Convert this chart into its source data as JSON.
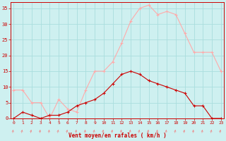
{
  "hours": [
    0,
    1,
    2,
    3,
    4,
    5,
    6,
    7,
    8,
    9,
    10,
    11,
    12,
    13,
    14,
    15,
    16,
    17,
    18,
    19,
    20,
    21,
    22,
    23
  ],
  "wind_avg": [
    0,
    2,
    1,
    0,
    1,
    1,
    2,
    4,
    5,
    6,
    8,
    11,
    14,
    15,
    14,
    12,
    11,
    10,
    9,
    8,
    4,
    4,
    0,
    0
  ],
  "wind_gust": [
    9,
    9,
    5,
    5,
    0,
    6,
    3,
    2,
    9,
    15,
    15,
    18,
    24,
    31,
    35,
    36,
    33,
    34,
    33,
    27,
    21,
    21,
    21,
    15
  ],
  "avg_color": "#cc0000",
  "gust_color": "#ffaaaa",
  "bg_color": "#cef0f0",
  "grid_color": "#aadddd",
  "xlabel": "Vent moyen/en rafales ( km/h )",
  "xlabel_color": "#cc0000",
  "tick_color": "#cc0000",
  "ylim": [
    0,
    37
  ],
  "yticks": [
    0,
    5,
    10,
    15,
    20,
    25,
    30,
    35
  ],
  "arrow_color": "#ee8888"
}
